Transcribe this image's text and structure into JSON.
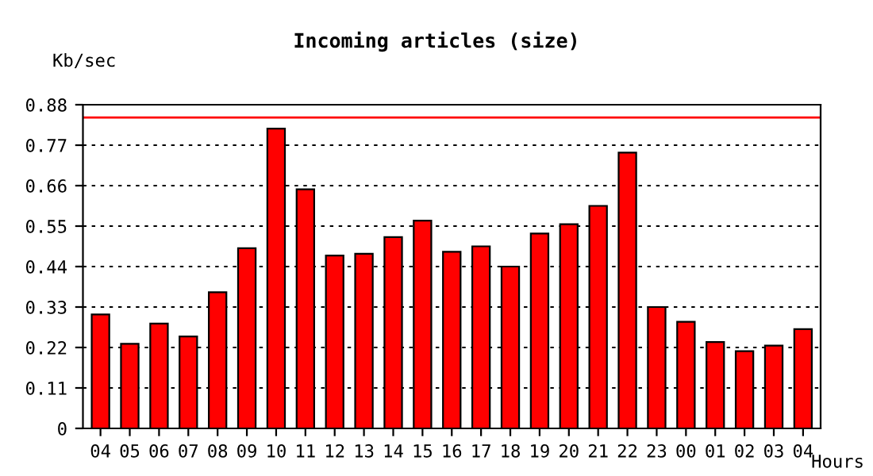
{
  "chart_data": {
    "type": "bar",
    "title": "Incoming articles (size)",
    "ylabel": "Kb/sec",
    "xlabel": "Hours",
    "categories": [
      "04",
      "05",
      "06",
      "07",
      "08",
      "09",
      "10",
      "11",
      "12",
      "13",
      "14",
      "15",
      "16",
      "17",
      "18",
      "19",
      "20",
      "21",
      "22",
      "23",
      "00",
      "01",
      "02",
      "03",
      "04"
    ],
    "series": [
      {
        "color": "#ff0000",
        "values": [
          0.31,
          0.23,
          0.285,
          0.25,
          0.37,
          0.49,
          0.815,
          0.65,
          0.47,
          0.475,
          0.52,
          0.565,
          0.48,
          0.495,
          0.44,
          0.53,
          0.555,
          0.605,
          0.75,
          0.33,
          0.29,
          0.235,
          0.21,
          0.225,
          0.27
        ]
      }
    ],
    "ylim": [
      0,
      0.88
    ],
    "yticks": [
      0,
      0.11,
      0.22,
      0.33,
      0.44,
      0.55,
      0.66,
      0.77,
      0.88
    ],
    "grid": "y",
    "ref_lines": [
      {
        "axis": "y",
        "value": 0.845,
        "color": "#ff0000",
        "line_style": "solid"
      }
    ]
  }
}
